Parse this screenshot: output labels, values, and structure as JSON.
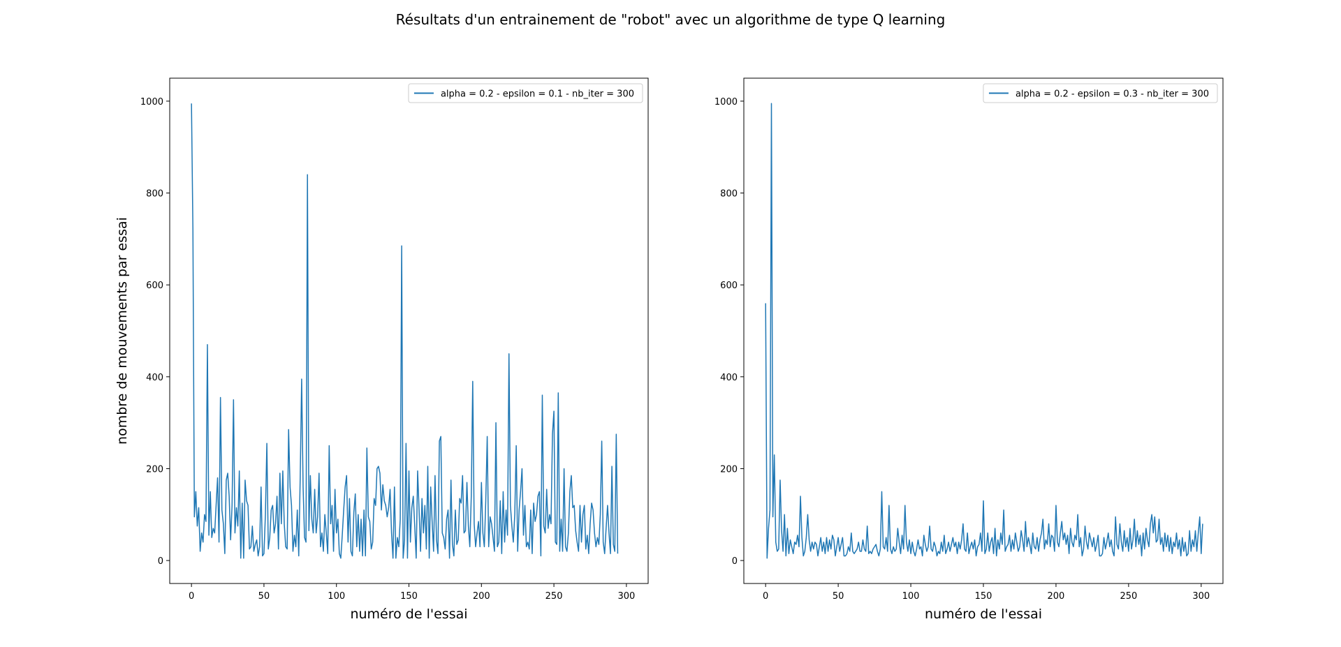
{
  "title": "Résultats d'un entrainement de \"robot\" avec un algorithme de type Q learning",
  "colors": {
    "line": "#1f77b4",
    "axis": "#000000",
    "legend_border": "#cccccc"
  },
  "chart_data": [
    {
      "type": "line",
      "xlabel": "numéro de l'essai",
      "ylabel": "nombre de mouvements par essai",
      "xlim": [
        -15,
        315
      ],
      "ylim": [
        -50,
        1050
      ],
      "xticks": [
        0,
        50,
        100,
        150,
        200,
        250,
        300
      ],
      "yticks": [
        0,
        200,
        400,
        600,
        800,
        1000
      ],
      "grid": false,
      "legend_position": "top-right",
      "series": [
        {
          "name": "alpha = 0.2 - epsilon = 0.1 - nb_iter = 300",
          "x_start": 0,
          "x_step": 1,
          "values": [
            995,
            720,
            95,
            150,
            75,
            115,
            20,
            60,
            40,
            100,
            85,
            470,
            55,
            150,
            50,
            70,
            60,
            120,
            180,
            40,
            355,
            110,
            80,
            15,
            175,
            190,
            140,
            45,
            120,
            350,
            60,
            115,
            75,
            195,
            5,
            125,
            5,
            175,
            130,
            120,
            25,
            30,
            75,
            20,
            35,
            45,
            10,
            30,
            160,
            10,
            15,
            100,
            255,
            25,
            50,
            110,
            120,
            60,
            80,
            140,
            25,
            190,
            80,
            195,
            80,
            30,
            25,
            285,
            160,
            120,
            20,
            55,
            30,
            110,
            10,
            180,
            395,
            160,
            50,
            40,
            840,
            65,
            185,
            90,
            60,
            155,
            60,
            95,
            190,
            30,
            60,
            20,
            100,
            60,
            15,
            250,
            80,
            120,
            20,
            155,
            60,
            90,
            15,
            5,
            55,
            110,
            160,
            185,
            40,
            135,
            20,
            10,
            105,
            145,
            30,
            100,
            20,
            90,
            10,
            110,
            10,
            245,
            95,
            85,
            25,
            40,
            135,
            120,
            200,
            205,
            190,
            110,
            165,
            130,
            120,
            95,
            115,
            155,
            60,
            5,
            160,
            5,
            50,
            30,
            90,
            685,
            5,
            45,
            255,
            5,
            195,
            40,
            115,
            140,
            75,
            5,
            195,
            110,
            20,
            135,
            60,
            120,
            25,
            205,
            5,
            160,
            85,
            20,
            185,
            45,
            15,
            260,
            270,
            60,
            50,
            25,
            90,
            110,
            5,
            175,
            35,
            10,
            110,
            35,
            45,
            135,
            125,
            185,
            60,
            65,
            170,
            75,
            30,
            140,
            390,
            80,
            30,
            60,
            85,
            30,
            170,
            60,
            30,
            130,
            270,
            30,
            95,
            80,
            50,
            20,
            300,
            30,
            40,
            130,
            15,
            150,
            40,
            110,
            55,
            450,
            120,
            75,
            40,
            100,
            250,
            20,
            110,
            150,
            200,
            55,
            120,
            30,
            40,
            25,
            110,
            15,
            125,
            85,
            100,
            140,
            150,
            10,
            360,
            75,
            60,
            155,
            70,
            100,
            80,
            275,
            325,
            40,
            35,
            365,
            20,
            90,
            20,
            200,
            30,
            20,
            60,
            150,
            185,
            115,
            120,
            65,
            40,
            20,
            120,
            40,
            100,
            120,
            25,
            55,
            15,
            80,
            125,
            110,
            60,
            30,
            50,
            35,
            100,
            260,
            40,
            15,
            70,
            120,
            60,
            15,
            205,
            35,
            20,
            275,
            15
          ]
        }
      ]
    },
    {
      "type": "line",
      "xlabel": "numéro de l'essai",
      "ylabel": "",
      "xlim": [
        -15,
        315
      ],
      "ylim": [
        -50,
        1050
      ],
      "xticks": [
        0,
        50,
        100,
        150,
        200,
        250,
        300
      ],
      "yticks": [
        0,
        200,
        400,
        600,
        800,
        1000
      ],
      "grid": false,
      "legend_position": "top-right",
      "series": [
        {
          "name": "alpha = 0.2 - epsilon = 0.3 - nb_iter = 300",
          "x_start": 0,
          "x_step": 1,
          "values": [
            560,
            5,
            70,
            110,
            995,
            95,
            230,
            40,
            20,
            25,
            175,
            65,
            20,
            100,
            10,
            70,
            15,
            45,
            30,
            15,
            40,
            35,
            55,
            30,
            140,
            50,
            10,
            20,
            50,
            100,
            45,
            20,
            40,
            25,
            40,
            35,
            10,
            30,
            50,
            20,
            40,
            15,
            50,
            20,
            45,
            25,
            55,
            45,
            10,
            30,
            50,
            20,
            35,
            50,
            10,
            10,
            15,
            30,
            20,
            60,
            20,
            15,
            20,
            25,
            40,
            20,
            20,
            45,
            25,
            20,
            75,
            15,
            20,
            15,
            25,
            30,
            35,
            20,
            10,
            25,
            150,
            30,
            25,
            50,
            20,
            120,
            25,
            15,
            30,
            20,
            25,
            70,
            40,
            15,
            55,
            25,
            120,
            40,
            20,
            45,
            15,
            40,
            20,
            10,
            25,
            45,
            25,
            30,
            10,
            55,
            35,
            20,
            30,
            75,
            25,
            20,
            40,
            30,
            10,
            20,
            15,
            40,
            20,
            55,
            15,
            25,
            40,
            20,
            35,
            50,
            30,
            40,
            15,
            40,
            25,
            45,
            80,
            25,
            20,
            60,
            15,
            30,
            40,
            25,
            45,
            10,
            30,
            35,
            60,
            20,
            130,
            15,
            25,
            60,
            20,
            40,
            50,
            15,
            70,
            10,
            45,
            25,
            60,
            35,
            110,
            20,
            30,
            35,
            55,
            20,
            45,
            25,
            60,
            40,
            20,
            30,
            65,
            45,
            20,
            85,
            30,
            50,
            35,
            15,
            60,
            30,
            25,
            50,
            20,
            45,
            60,
            90,
            25,
            45,
            35,
            80,
            30,
            55,
            50,
            20,
            120,
            40,
            30,
            60,
            85,
            45,
            60,
            35,
            55,
            15,
            70,
            40,
            30,
            55,
            45,
            100,
            30,
            50,
            10,
            25,
            75,
            40,
            25,
            60,
            45,
            30,
            50,
            20,
            35,
            55,
            10,
            10,
            15,
            50,
            25,
            40,
            60,
            30,
            45,
            20,
            10,
            95,
            35,
            25,
            80,
            40,
            20,
            65,
            30,
            50,
            20,
            70,
            25,
            45,
            90,
            30,
            65,
            35,
            55,
            10,
            60,
            25,
            70,
            45,
            30,
            80,
            100,
            60,
            95,
            40,
            45,
            90,
            35,
            50,
            20,
            60,
            30,
            55,
            20,
            50,
            15,
            40,
            30,
            60,
            25,
            45,
            10,
            50,
            20,
            40,
            10,
            15,
            65,
            20,
            45,
            30,
            65,
            20,
            60,
            95,
            15,
            80
          ]
        }
      ]
    }
  ]
}
